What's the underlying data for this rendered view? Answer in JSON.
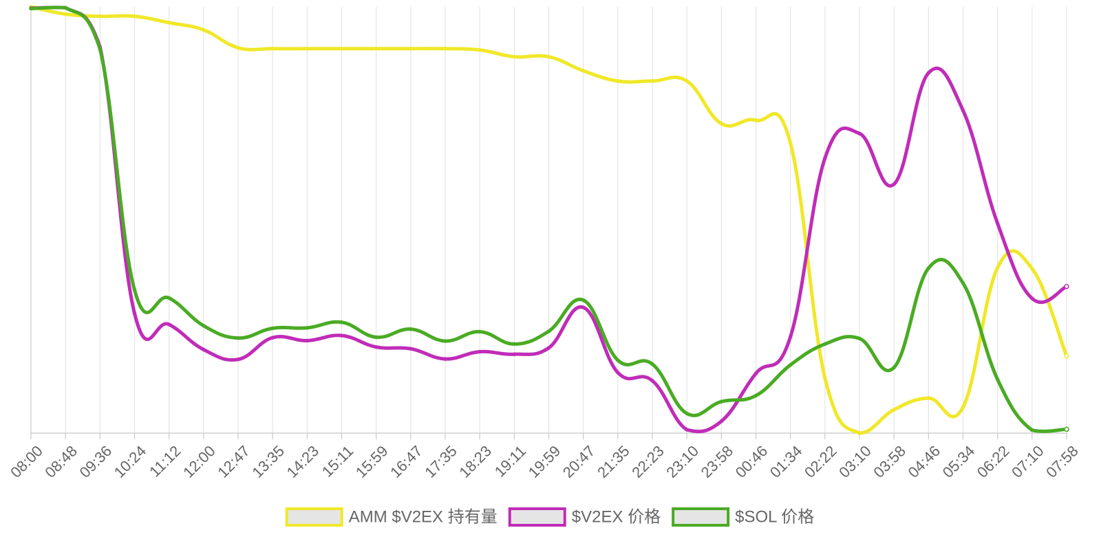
{
  "chart_data": {
    "type": "line",
    "title": "",
    "xlabel": "",
    "ylabel": "",
    "y_axis_labels": false,
    "grid": "vertical",
    "legend_position": "bottom",
    "ylim": [
      0,
      100
    ],
    "x": [
      "08:00",
      "08:48",
      "09:36",
      "10:24",
      "11:12",
      "12:00",
      "12:47",
      "13:35",
      "14:23",
      "15:11",
      "15:59",
      "16:47",
      "17:35",
      "18:23",
      "19:11",
      "19:59",
      "20:47",
      "21:35",
      "22:23",
      "23:10",
      "23:58",
      "00:46",
      "01:34",
      "02:22",
      "03:10",
      "03:58",
      "04:46",
      "05:34",
      "06:22",
      "07:10",
      "07:58"
    ],
    "series": [
      {
        "name": "AMM $V2EX 持有量",
        "color": "#f0e829",
        "values": [
          100,
          98.3,
          97.8,
          97.8,
          96.3,
          94.6,
          90.4,
          90.2,
          90.2,
          90.2,
          90.2,
          90.2,
          90.2,
          89.9,
          88.3,
          88.3,
          85,
          82.6,
          82.6,
          82.6,
          72.6,
          73.4,
          68,
          12.9,
          0,
          5.5,
          8.2,
          6.1,
          38.8,
          38.6,
          18.1
        ]
      },
      {
        "name": "$V2EX 价格",
        "color": "#c02cb8",
        "values": [
          99.7,
          99.8,
          90.6,
          28.1,
          25.5,
          19.6,
          17.3,
          22.4,
          21.7,
          22.9,
          20.2,
          19.8,
          17.4,
          19.1,
          18.5,
          20,
          29.5,
          14.2,
          12.3,
          0.8,
          2.8,
          14,
          22.6,
          64.5,
          70.3,
          58.4,
          84.5,
          75.7,
          49.2,
          31.6,
          34.4
        ]
      },
      {
        "name": "$SOL 价格",
        "color": "#4aab24",
        "values": [
          99.6,
          99.8,
          90.1,
          33.6,
          31.7,
          25.2,
          22.3,
          24.6,
          24.7,
          26,
          22.5,
          24.4,
          21.6,
          23.8,
          20.9,
          23.9,
          31.2,
          17.1,
          16.2,
          4.6,
          7.4,
          8.8,
          16,
          20.9,
          22.2,
          15.4,
          38.7,
          35.2,
          12.6,
          0.7,
          0.9
        ]
      }
    ]
  }
}
